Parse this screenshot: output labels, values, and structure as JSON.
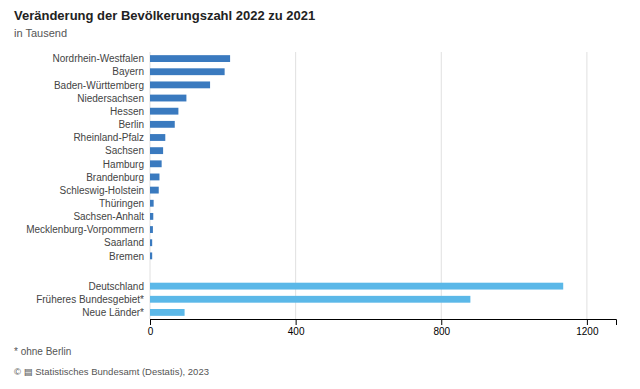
{
  "chart_data": {
    "type": "bar",
    "orientation": "horizontal",
    "title": "Veränderung der Bevölkerungszahl 2022 zu 2021",
    "subtitle": "in Tausend",
    "annotations": [
      "* ohne Berlin",
      "© ▤ Statistisches Bundesamt (Destatis), 2023"
    ],
    "categories": [
      "Nordrhein-Westfalen",
      "Bayern",
      "Baden-Württemberg",
      "Niedersachsen",
      "Hessen",
      "Berlin",
      "Rheinland-Pfalz",
      "Sachsen",
      "Hamburg",
      "Brandenburg",
      "Schleswig-Holstein",
      "Thüringen",
      "Sachsen-Anhalt",
      "Mecklenburg-Vorpommern",
      "Saarland",
      "Bremen",
      "Deutschland",
      "Früheres Bundesgebiet*",
      "Neue Länder*"
    ],
    "values": [
      220,
      205,
      165,
      100,
      78,
      68,
      42,
      36,
      32,
      26,
      24,
      10,
      9,
      8,
      6,
      6,
      1135,
      880,
      95
    ],
    "colors": [
      "#3a7abf",
      "#3a7abf",
      "#3a7abf",
      "#3a7abf",
      "#3a7abf",
      "#3a7abf",
      "#3a7abf",
      "#3a7abf",
      "#3a7abf",
      "#3a7abf",
      "#3a7abf",
      "#3a7abf",
      "#3a7abf",
      "#3a7abf",
      "#3a7abf",
      "#3a7abf",
      "#5bb8e8",
      "#5bb8e8",
      "#5bb8e8"
    ],
    "xlim": [
      0,
      1280
    ],
    "xticks": [
      0,
      400,
      800,
      1200
    ],
    "grid": true
  }
}
